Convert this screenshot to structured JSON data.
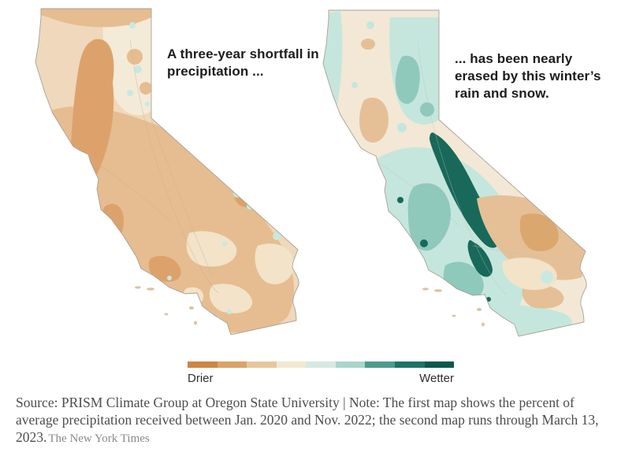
{
  "figure": {
    "maps": [
      {
        "name": "precipitation-shortfall-map",
        "annotation": "A three-year shortfall in precipitation ..."
      },
      {
        "name": "winter-recovery-map",
        "annotation": "... has been nearly erased by this winter’s rain and snow."
      }
    ],
    "legend": {
      "left_label": "Drier",
      "right_label": "Wetter",
      "colors": [
        "#cd8642",
        "#dba269",
        "#e8c69b",
        "#f2e7d1",
        "#d3eae2",
        "#a9d6ca",
        "#4e9b8c",
        "#1d7466",
        "#0a594d"
      ]
    },
    "map_colors": {
      "m1_base": "#efd8bb",
      "m1_mid": "#e6bd90",
      "m1_dark": "#dda26b",
      "m1_cream": "#f4ead8",
      "m1_cream2": "#f2e3c9",
      "pale_blue": "#c7e9e2",
      "m2_base": "#f2e8d5",
      "m2_tan": "#e5c096",
      "m2_tan_dark": "#daa76e",
      "m2_teal_light": "#c5e6dd",
      "m2_teal_mid": "#8ec9bb",
      "m2_teal_dark": "#18695a"
    },
    "source": {
      "text": "Source: PRISM Climate Group at Oregon State University | Note: The first map shows the percent of average precipitation received between Jan. 2020 and Nov. 2022; the second map runs through March 13, 2023.",
      "credit": "The New York Times"
    }
  }
}
